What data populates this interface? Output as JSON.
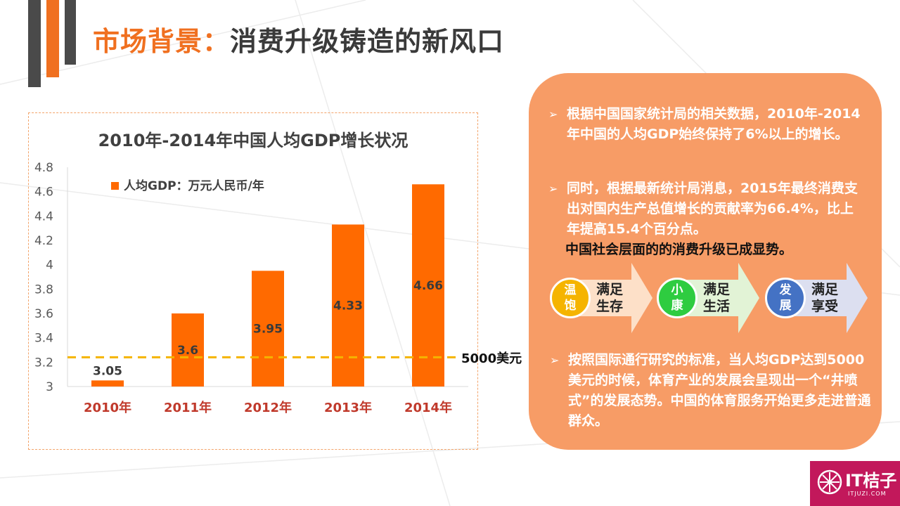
{
  "title": {
    "accent": "市场背景：",
    "main": "消费升级铸造的新风口"
  },
  "chart_data": {
    "type": "bar",
    "title": "2010年-2014年中国人均GDP增长状况",
    "legend": {
      "label": "人均GDP：万元人民币/年",
      "placement": "top-left"
    },
    "categories": [
      "2010年",
      "2011年",
      "2012年",
      "2013年",
      "2014年"
    ],
    "series": [
      {
        "name": "人均GDP：万元人民币/年",
        "values": [
          3.05,
          3.6,
          3.95,
          4.33,
          4.66
        ]
      }
    ],
    "data_labels": [
      "3.05",
      "3.6",
      "3.95",
      "4.33",
      "4.66"
    ],
    "ylim": [
      3,
      4.8
    ],
    "yticks": [
      "3",
      "3.2",
      "3.4",
      "3.6",
      "3.8",
      "4",
      "4.2",
      "4.4",
      "4.6",
      "4.8"
    ],
    "reference_line": {
      "value": 3.24,
      "label": "5000美元",
      "color": "#f5b400"
    },
    "bar_color": "#ff6a00",
    "grid": false
  },
  "panel": {
    "bullet1": "根据中国国家统计局的相关数据，2010年-2014年中国的人均GDP始终保持了6%以上的增长。",
    "bullet2": "同时，根据最新统计局消息，2015年最终消费支出对国内生产总值增长的贡献率为66.4%，比上年提高15.4个百分点。",
    "bullet2_dark": "中国社会层面的的消费升级已成显势。",
    "bullet3": "按照国际通行研究的标准，当人均GDP达到5000美元的时候，体育产业的发展会呈现出一个“井喷式”的发展态势。中国的体育服务开始更多走进普通群众。",
    "stages": [
      {
        "circle_top": "温",
        "circle_bottom": "饱",
        "label_top": "满足",
        "label_bottom": "生存",
        "circle_color": "#f5b400",
        "band_color": "#fde0c8"
      },
      {
        "circle_top": "小",
        "circle_bottom": "康",
        "label_top": "满足",
        "label_bottom": "生活",
        "circle_color": "#2ecc40",
        "band_color": "#e2f3d6"
      },
      {
        "circle_top": "发",
        "circle_bottom": "展",
        "label_top": "满足",
        "label_bottom": "享受",
        "circle_color": "#4472c4",
        "band_color": "#dcdff0"
      }
    ]
  },
  "logo": {
    "name": "IT桔子",
    "url": "ITJUZI.COM"
  },
  "colors": {
    "accent": "#f07020",
    "panel": "#f79c66",
    "dark_bar": "#4a4a4a"
  }
}
